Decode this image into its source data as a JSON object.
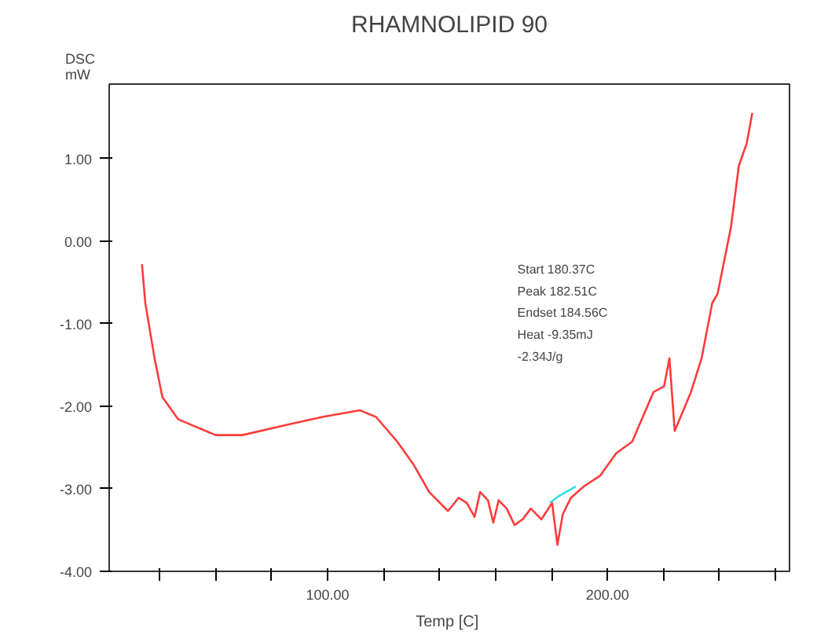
{
  "chart_data": {
    "type": "line",
    "title": "RHAMNOLIPID 90",
    "xlabel": "Temp  [C]",
    "ylabel": "DSC\nmW",
    "xlim": [
      22,
      265
    ],
    "ylim": [
      -4,
      1.9
    ],
    "xticks": [
      {
        "value": 40,
        "label": null
      },
      {
        "value": 60,
        "label": null
      },
      {
        "value": 80,
        "label": null
      },
      {
        "value": 100,
        "label": "100.00"
      },
      {
        "value": 120,
        "label": null
      },
      {
        "value": 140,
        "label": null
      },
      {
        "value": 160,
        "label": null
      },
      {
        "value": 180,
        "label": null
      },
      {
        "value": 200,
        "label": "200.00"
      },
      {
        "value": 220,
        "label": null
      },
      {
        "value": 240,
        "label": null
      },
      {
        "value": 260,
        "label": null
      }
    ],
    "yticks": [
      {
        "value": -4,
        "label": "-4.00"
      },
      {
        "value": -3,
        "label": "-3.00"
      },
      {
        "value": -2,
        "label": "-2.00"
      },
      {
        "value": -1,
        "label": "-1.00"
      },
      {
        "value": 0,
        "label": "0.00"
      },
      {
        "value": 1,
        "label": "1.00"
      }
    ],
    "grid": false,
    "annotations": [
      "Start  180.37C",
      "Peak  182.51C",
      "Endset  184.56C",
      "Heat  -9.35mJ",
      "-2.34J/g"
    ],
    "series": [
      {
        "color": "#ff3b3b",
        "x": [
          33.7,
          34.9,
          38.2,
          41,
          46.7,
          60,
          69.6,
          84.9,
          98.2,
          111.6,
          117.3,
          124.9,
          130.6,
          136.3,
          143,
          146.8,
          149.7,
          152.5,
          154.5,
          157.3,
          159.2,
          161.1,
          164,
          166.8,
          169.7,
          172.6,
          176.4,
          180.2,
          182.1,
          184,
          186.9,
          191.6,
          197.4,
          203.1,
          208.8,
          216.4,
          220.2,
          222.1,
          224,
          229.8,
          233.6,
          237.4,
          239.3,
          244.1,
          246.9,
          249.7,
          251.7
        ],
        "values": [
          -0.28,
          -0.75,
          -1.42,
          -1.89,
          -2.16,
          -2.35,
          -2.35,
          -2.23,
          -2.13,
          -2.05,
          -2.13,
          -2.43,
          -2.7,
          -3.04,
          -3.27,
          -3.11,
          -3.17,
          -3.34,
          -3.04,
          -3.14,
          -3.41,
          -3.14,
          -3.24,
          -3.44,
          -3.37,
          -3.24,
          -3.37,
          -3.17,
          -3.68,
          -3.31,
          -3.11,
          -2.97,
          -2.84,
          -2.57,
          -2.43,
          -1.83,
          -1.76,
          -1.42,
          -2.3,
          -1.83,
          -1.42,
          -0.75,
          -0.64,
          0.17,
          0.91,
          1.18,
          1.55
        ]
      },
      {
        "color": "#33dde6",
        "x": [
          179.4,
          182.1,
          188.7
        ],
        "values": [
          -3.17,
          -3.1,
          -2.97
        ]
      }
    ]
  }
}
